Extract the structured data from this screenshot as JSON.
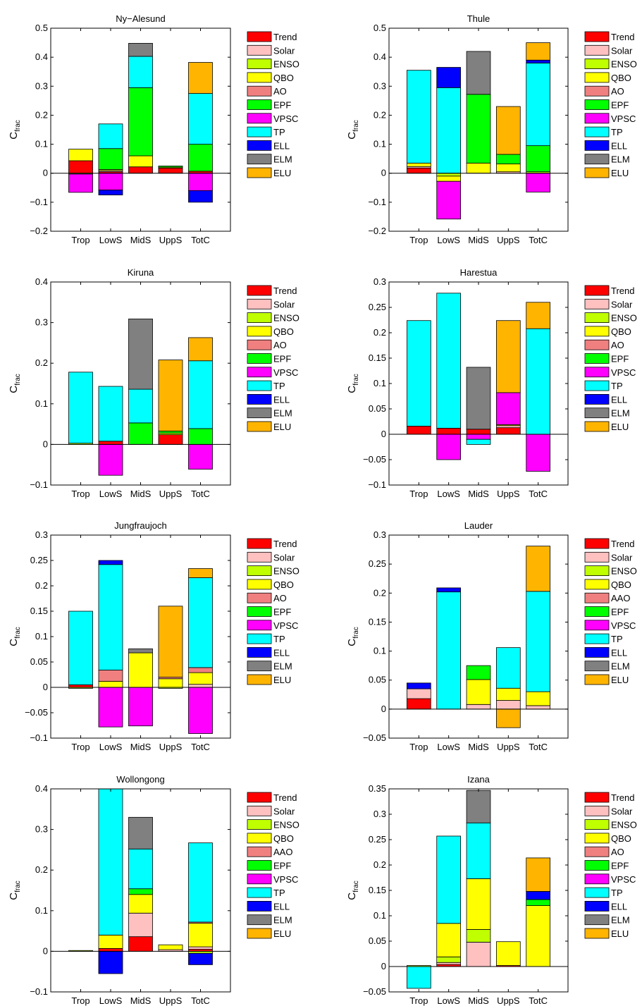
{
  "colors": {
    "Trend": "#ff0000",
    "Solar": "#ffc0c0",
    "ENSO": "#c0ff00",
    "QBO": "#ffff00",
    "AO": "#f08080",
    "AAO": "#f08080",
    "EPF": "#00ff00",
    "VPSC": "#ff00ff",
    "TP": "#00ffff",
    "ELL": "#0000ff",
    "ELM": "#808080",
    "ELU": "#ffb400"
  },
  "ylabel_main": "C",
  "ylabel_sub": "frac",
  "chart_data": [
    {
      "type": "bar",
      "title": "Ny−Alesund",
      "categories": [
        "Trop",
        "LowS",
        "MidS",
        "UppS",
        "TotC"
      ],
      "ylim": [
        -0.2,
        0.5
      ],
      "yticks": [
        "-0.2",
        "-0.1",
        "0",
        "0.1",
        "0.2",
        "0.3",
        "0.4",
        "0.5"
      ],
      "legend": [
        "Trend",
        "Solar",
        "ENSO",
        "QBO",
        "AO",
        "EPF",
        "VPSC",
        "TP",
        "ELL",
        "ELM",
        "ELU"
      ],
      "series": [
        {
          "name": "Trend",
          "values": [
            0.043,
            0.005,
            0.022,
            0.018,
            0.007
          ]
        },
        {
          "name": "Solar",
          "values": [
            0,
            0.004,
            0,
            0,
            0
          ]
        },
        {
          "name": "ENSO",
          "values": [
            -0.003,
            0.004,
            0,
            0.003,
            0
          ]
        },
        {
          "name": "QBO",
          "values": [
            0.04,
            0,
            0.038,
            0,
            0
          ]
        },
        {
          "name": "AO",
          "values": [
            0,
            0,
            0,
            0,
            0
          ]
        },
        {
          "name": "EPF",
          "values": [
            0,
            0.072,
            0.235,
            0.004,
            0.093
          ]
        },
        {
          "name": "VPSC",
          "values": [
            -0.063,
            -0.058,
            0,
            0,
            -0.06
          ]
        },
        {
          "name": "TP",
          "values": [
            0,
            0.085,
            0.108,
            0,
            0.175
          ]
        },
        {
          "name": "ELL",
          "values": [
            0,
            -0.017,
            0,
            0,
            -0.04
          ]
        },
        {
          "name": "ELM",
          "values": [
            0,
            0,
            0.045,
            0,
            0
          ]
        },
        {
          "name": "ELU",
          "values": [
            0,
            0,
            0,
            0,
            0.107
          ]
        }
      ]
    },
    {
      "type": "bar",
      "title": "Thule",
      "categories": [
        "Trop",
        "LowS",
        "MidS",
        "UppS",
        "TotC"
      ],
      "ylim": [
        -0.2,
        0.5
      ],
      "yticks": [
        "-0.2",
        "-0.1",
        "0",
        "0.1",
        "0.2",
        "0.3",
        "0.4",
        "0.5"
      ],
      "legend": [
        "Trend",
        "Solar",
        "ENSO",
        "QBO",
        "AO",
        "EPF",
        "VPSC",
        "TP",
        "ELL",
        "ELM",
        "ELU"
      ],
      "series": [
        {
          "name": "Trend",
          "values": [
            0.018,
            0,
            0,
            0,
            0
          ]
        },
        {
          "name": "Solar",
          "values": [
            0.005,
            0,
            0,
            0.005,
            0
          ]
        },
        {
          "name": "ENSO",
          "values": [
            0,
            -0.01,
            0,
            0,
            0.005
          ]
        },
        {
          "name": "QBO",
          "values": [
            0.012,
            -0.018,
            0.035,
            0.027,
            0
          ]
        },
        {
          "name": "AO",
          "values": [
            0,
            0,
            0,
            0,
            0
          ]
        },
        {
          "name": "EPF",
          "values": [
            0,
            0,
            0.237,
            0.033,
            0.09
          ]
        },
        {
          "name": "VPSC",
          "values": [
            0,
            -0.13,
            0,
            0,
            -0.065
          ]
        },
        {
          "name": "TP",
          "values": [
            0.32,
            0.295,
            0,
            0,
            0.285
          ]
        },
        {
          "name": "ELL",
          "values": [
            0,
            0.07,
            0,
            0,
            0.01
          ]
        },
        {
          "name": "ELM",
          "values": [
            0,
            0,
            0.148,
            0,
            0
          ]
        },
        {
          "name": "ELU",
          "values": [
            0,
            0,
            0,
            0.165,
            0.06
          ]
        }
      ]
    },
    {
      "type": "bar",
      "title": "Kiruna",
      "categories": [
        "Trop",
        "LowS",
        "MidS",
        "UppS",
        "TotC"
      ],
      "ylim": [
        -0.1,
        0.4
      ],
      "yticks": [
        "-0.1",
        "0",
        "0.1",
        "0.2",
        "0.3",
        "0.4"
      ],
      "legend": [
        "Trend",
        "Solar",
        "ENSO",
        "QBO",
        "AO",
        "EPF",
        "VPSC",
        "TP",
        "ELL",
        "ELM",
        "ELU"
      ],
      "series": [
        {
          "name": "Trend",
          "values": [
            0,
            0.008,
            0,
            0.024,
            0
          ]
        },
        {
          "name": "Solar",
          "values": [
            0,
            0,
            0,
            0,
            0
          ]
        },
        {
          "name": "ENSO",
          "values": [
            0.003,
            0,
            0,
            0.004,
            0
          ]
        },
        {
          "name": "QBO",
          "values": [
            0,
            0,
            0,
            0,
            0
          ]
        },
        {
          "name": "AO",
          "values": [
            0,
            0,
            0,
            0,
            0
          ]
        },
        {
          "name": "EPF",
          "values": [
            0,
            0,
            0.053,
            0.005,
            0.039
          ]
        },
        {
          "name": "VPSC",
          "values": [
            0,
            -0.076,
            0,
            0,
            -0.061
          ]
        },
        {
          "name": "TP",
          "values": [
            0.175,
            0.135,
            0.083,
            0,
            0.167
          ]
        },
        {
          "name": "ELL",
          "values": [
            0,
            0,
            0,
            0,
            0
          ]
        },
        {
          "name": "ELM",
          "values": [
            0,
            0,
            0.173,
            0,
            0
          ]
        },
        {
          "name": "ELU",
          "values": [
            0,
            0,
            0,
            0.175,
            0.057
          ]
        }
      ]
    },
    {
      "type": "bar",
      "title": "Harestua",
      "categories": [
        "Trop",
        "LowS",
        "MidS",
        "UppS",
        "TotC"
      ],
      "ylim": [
        -0.1,
        0.3
      ],
      "yticks": [
        "-0.1",
        "-0.05",
        "0",
        "0.05",
        "0.1",
        "0.15",
        "0.2",
        "0.25",
        "0.3"
      ],
      "legend": [
        "Trend",
        "Solar",
        "ENSO",
        "QBO",
        "AO",
        "EPF",
        "VPSC",
        "TP",
        "ELL",
        "ELM",
        "ELU"
      ],
      "series": [
        {
          "name": "Trend",
          "values": [
            0.016,
            0.012,
            0.01,
            0.013,
            0
          ]
        },
        {
          "name": "Solar",
          "values": [
            0,
            0,
            0,
            0.004,
            0
          ]
        },
        {
          "name": "ENSO",
          "values": [
            0,
            0,
            0,
            0,
            0
          ]
        },
        {
          "name": "QBO",
          "values": [
            0,
            0,
            0,
            0.002,
            0
          ]
        },
        {
          "name": "AO",
          "values": [
            0,
            0,
            0,
            0,
            0
          ]
        },
        {
          "name": "EPF",
          "values": [
            0,
            0,
            0,
            0,
            0
          ]
        },
        {
          "name": "VPSC",
          "values": [
            0,
            -0.05,
            -0.01,
            0.063,
            -0.073
          ]
        },
        {
          "name": "TP",
          "values": [
            0.208,
            0.266,
            -0.01,
            0,
            0.208
          ]
        },
        {
          "name": "ELL",
          "values": [
            0,
            0,
            0,
            0,
            0
          ]
        },
        {
          "name": "ELM",
          "values": [
            0,
            0,
            0.122,
            0,
            0
          ]
        },
        {
          "name": "ELU",
          "values": [
            0,
            0,
            0,
            0.142,
            0.052
          ]
        }
      ]
    },
    {
      "type": "bar",
      "title": "Jungfraujoch",
      "categories": [
        "Trop",
        "LowS",
        "MidS",
        "UppS",
        "TotC"
      ],
      "ylim": [
        -0.1,
        0.3
      ],
      "yticks": [
        "-0.1",
        "-0.05",
        "0",
        "0.05",
        "0.1",
        "0.15",
        "0.2",
        "0.25",
        "0.3"
      ],
      "legend": [
        "Trend",
        "Solar",
        "ENSO",
        "QBO",
        "AO",
        "EPF",
        "VPSC",
        "TP",
        "ELL",
        "ELM",
        "ELU"
      ],
      "series": [
        {
          "name": "Trend",
          "values": [
            0.005,
            0,
            0,
            0,
            0
          ]
        },
        {
          "name": "Solar",
          "values": [
            0,
            0,
            0,
            0,
            0.006
          ]
        },
        {
          "name": "ENSO",
          "values": [
            -0.002,
            0,
            0,
            -0.002,
            0
          ]
        },
        {
          "name": "QBO",
          "values": [
            0,
            0.012,
            0.068,
            0.017,
            0.023
          ]
        },
        {
          "name": "AO",
          "values": [
            0,
            0.022,
            0,
            0.003,
            0.01
          ]
        },
        {
          "name": "EPF",
          "values": [
            0,
            0,
            0,
            0,
            0
          ]
        },
        {
          "name": "VPSC",
          "values": [
            0,
            -0.078,
            -0.076,
            0,
            -0.091
          ]
        },
        {
          "name": "TP",
          "values": [
            0.145,
            0.208,
            0,
            0,
            0.177
          ]
        },
        {
          "name": "ELL",
          "values": [
            0,
            0.008,
            0,
            0,
            0
          ]
        },
        {
          "name": "ELM",
          "values": [
            0,
            0,
            0.008,
            0,
            0
          ]
        },
        {
          "name": "ELU",
          "values": [
            0,
            0,
            0,
            0.14,
            0.018
          ]
        }
      ]
    },
    {
      "type": "bar",
      "title": "Lauder",
      "categories": [
        "Trop",
        "LowS",
        "MidS",
        "UppS",
        "TotC"
      ],
      "ylim": [
        -0.05,
        0.3
      ],
      "yticks": [
        "-0.05",
        "0",
        "0.05",
        "0.1",
        "0.15",
        "0.2",
        "0.25",
        "0.3"
      ],
      "legend": [
        "Trend",
        "Solar",
        "ENSO",
        "QBO",
        "AAO",
        "EPF",
        "VPSC",
        "TP",
        "ELL",
        "ELM",
        "ELU"
      ],
      "series": [
        {
          "name": "Trend",
          "values": [
            0.018,
            0,
            0,
            0,
            0
          ]
        },
        {
          "name": "Solar",
          "values": [
            0.017,
            0,
            0.008,
            0.015,
            0.006
          ]
        },
        {
          "name": "ENSO",
          "values": [
            0,
            0,
            0,
            0,
            0
          ]
        },
        {
          "name": "QBO",
          "values": [
            0,
            0,
            0.043,
            0.021,
            0.024
          ]
        },
        {
          "name": "AAO",
          "values": [
            0,
            0,
            0,
            0,
            0
          ]
        },
        {
          "name": "EPF",
          "values": [
            0,
            0,
            0.024,
            0,
            0
          ]
        },
        {
          "name": "VPSC",
          "values": [
            0,
            0,
            0,
            0,
            0
          ]
        },
        {
          "name": "TP",
          "values": [
            0,
            0.202,
            0,
            0.07,
            0.173
          ]
        },
        {
          "name": "ELL",
          "values": [
            0.01,
            0.007,
            0,
            0,
            0
          ]
        },
        {
          "name": "ELM",
          "values": [
            0,
            0,
            0,
            0,
            0
          ]
        },
        {
          "name": "ELU",
          "values": [
            0,
            0,
            0,
            -0.032,
            0.078
          ]
        }
      ]
    },
    {
      "type": "bar",
      "title": "Wollongong",
      "categories": [
        "Trop",
        "LowS",
        "MidS",
        "UppS",
        "TotC"
      ],
      "ylim": [
        -0.1,
        0.4
      ],
      "yticks": [
        "-0.1",
        "0",
        "0.1",
        "0.2",
        "0.3",
        "0.4"
      ],
      "legend": [
        "Trend",
        "Solar",
        "ENSO",
        "QBO",
        "AAO",
        "EPF",
        "VPSC",
        "TP",
        "ELL",
        "ELM",
        "ELU"
      ],
      "series": [
        {
          "name": "Trend",
          "values": [
            0,
            0.007,
            0.036,
            0,
            0.005
          ]
        },
        {
          "name": "Solar",
          "values": [
            0,
            0,
            0.058,
            0.004,
            0.006
          ]
        },
        {
          "name": "ENSO",
          "values": [
            0.002,
            0,
            0,
            0,
            -0.005
          ]
        },
        {
          "name": "QBO",
          "values": [
            0,
            0.033,
            0.046,
            0.012,
            0.058
          ]
        },
        {
          "name": "AAO",
          "values": [
            0,
            0,
            0,
            0,
            0.003
          ]
        },
        {
          "name": "EPF",
          "values": [
            0,
            0,
            0.014,
            0,
            0
          ]
        },
        {
          "name": "VPSC",
          "values": [
            0,
            0,
            0,
            0,
            0
          ]
        },
        {
          "name": "TP",
          "values": [
            0,
            0.36,
            0.098,
            0,
            0.195
          ]
        },
        {
          "name": "ELL",
          "values": [
            0,
            -0.055,
            0,
            0,
            -0.028
          ]
        },
        {
          "name": "ELM",
          "values": [
            0,
            0,
            0.078,
            0,
            0
          ]
        },
        {
          "name": "ELU",
          "values": [
            0,
            0,
            0,
            0,
            0
          ]
        }
      ]
    },
    {
      "type": "bar",
      "title": "Izana",
      "categories": [
        "Trop",
        "LowS",
        "MidS",
        "UppS",
        "TotC"
      ],
      "ylim": [
        -0.05,
        0.35
      ],
      "yticks": [
        "-0.05",
        "0",
        "0.05",
        "0.1",
        "0.15",
        "0.2",
        "0.25",
        "0.3",
        "0.35"
      ],
      "legend": [
        "Trend",
        "Solar",
        "ENSO",
        "QBO",
        "AO",
        "EPF",
        "VPSC",
        "TP",
        "ELL",
        "ELM",
        "ELU"
      ],
      "series": [
        {
          "name": "Trend",
          "values": [
            0,
            0.004,
            0,
            0.002,
            0
          ]
        },
        {
          "name": "Solar",
          "values": [
            0,
            0.004,
            0.048,
            0,
            0
          ]
        },
        {
          "name": "ENSO",
          "values": [
            0.002,
            0.011,
            0.025,
            0,
            0
          ]
        },
        {
          "name": "QBO",
          "values": [
            0,
            0.066,
            0.1,
            0.047,
            0.12
          ]
        },
        {
          "name": "AO",
          "values": [
            0,
            0,
            0,
            0,
            0
          ]
        },
        {
          "name": "EPF",
          "values": [
            0,
            0,
            0,
            0,
            0.012
          ]
        },
        {
          "name": "VPSC",
          "values": [
            0,
            0,
            0,
            0,
            0
          ]
        },
        {
          "name": "TP",
          "values": [
            -0.043,
            0.172,
            0.11,
            0,
            0
          ]
        },
        {
          "name": "ELL",
          "values": [
            0,
            0,
            0,
            0,
            0.016
          ]
        },
        {
          "name": "ELM",
          "values": [
            0,
            0,
            0.064,
            0,
            0
          ]
        },
        {
          "name": "ELU",
          "values": [
            0,
            0,
            0,
            0,
            0.066
          ]
        }
      ]
    }
  ]
}
